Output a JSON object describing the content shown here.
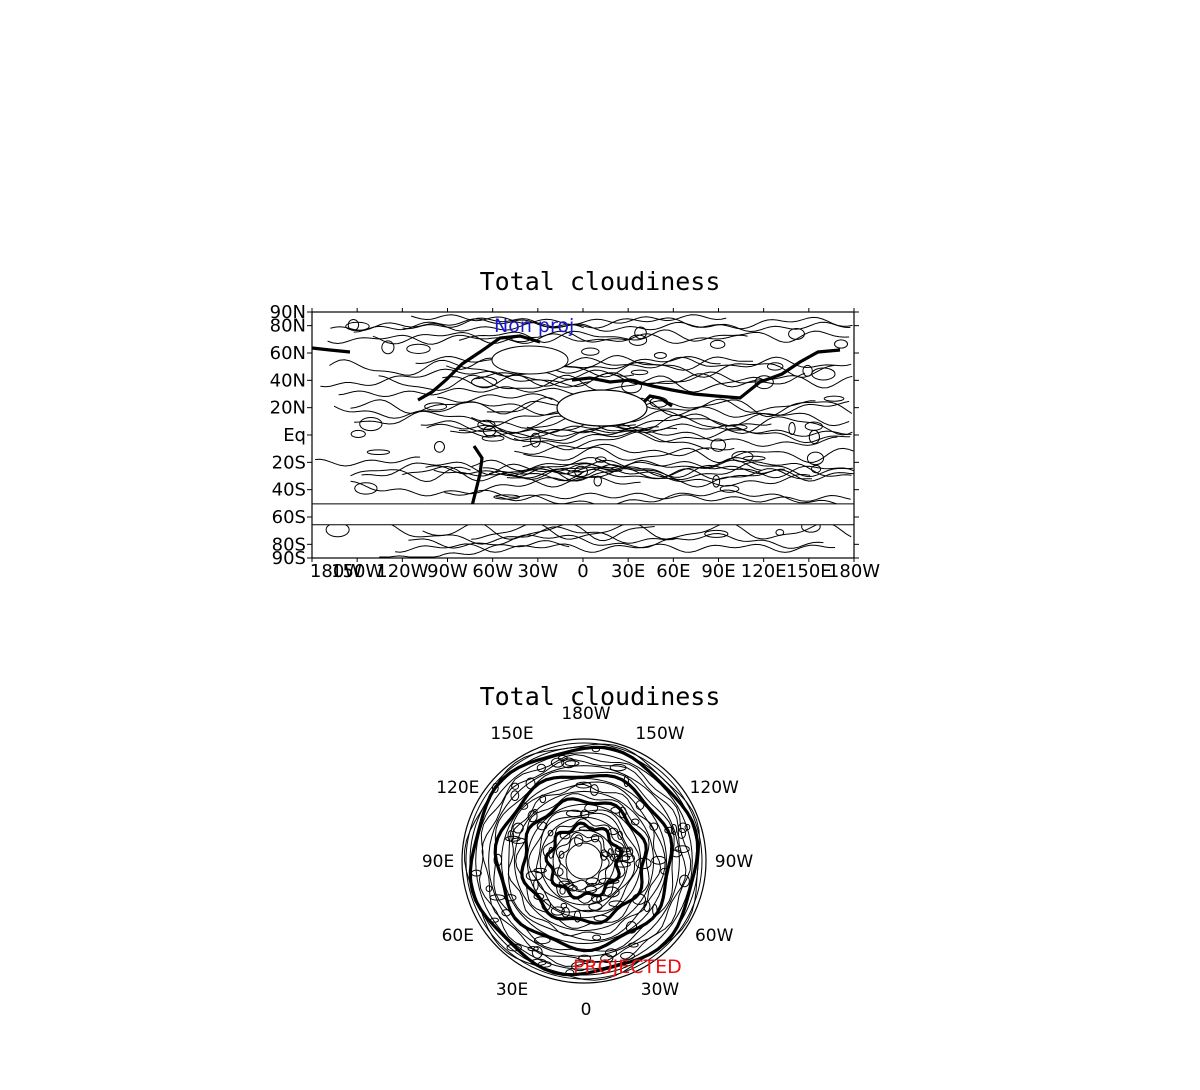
{
  "panels": [
    {
      "title": "Total cloudiness",
      "label": "Non proj",
      "lat_ticks": [
        "90N",
        "80N",
        "60N",
        "40N",
        "20N",
        "Eq",
        "20S",
        "40S",
        "60S",
        "80S",
        "90S"
      ],
      "lon_ticks": [
        "180W",
        "150W",
        "120W",
        "90W",
        "60W",
        "30W",
        "0",
        "30E",
        "60E",
        "90E",
        "120E",
        "150E",
        "180W"
      ]
    },
    {
      "title": "Total cloudiness",
      "label": "PROJECTED",
      "lon_labels": [
        "180W",
        "150W",
        "120W",
        "90W",
        "60W",
        "30W",
        "0",
        "30E",
        "60E",
        "90E",
        "120E",
        "150E"
      ]
    }
  ],
  "colors": {
    "label_blue": "#1a1acc",
    "label_red": "#ee1111",
    "lines": "#000000"
  }
}
